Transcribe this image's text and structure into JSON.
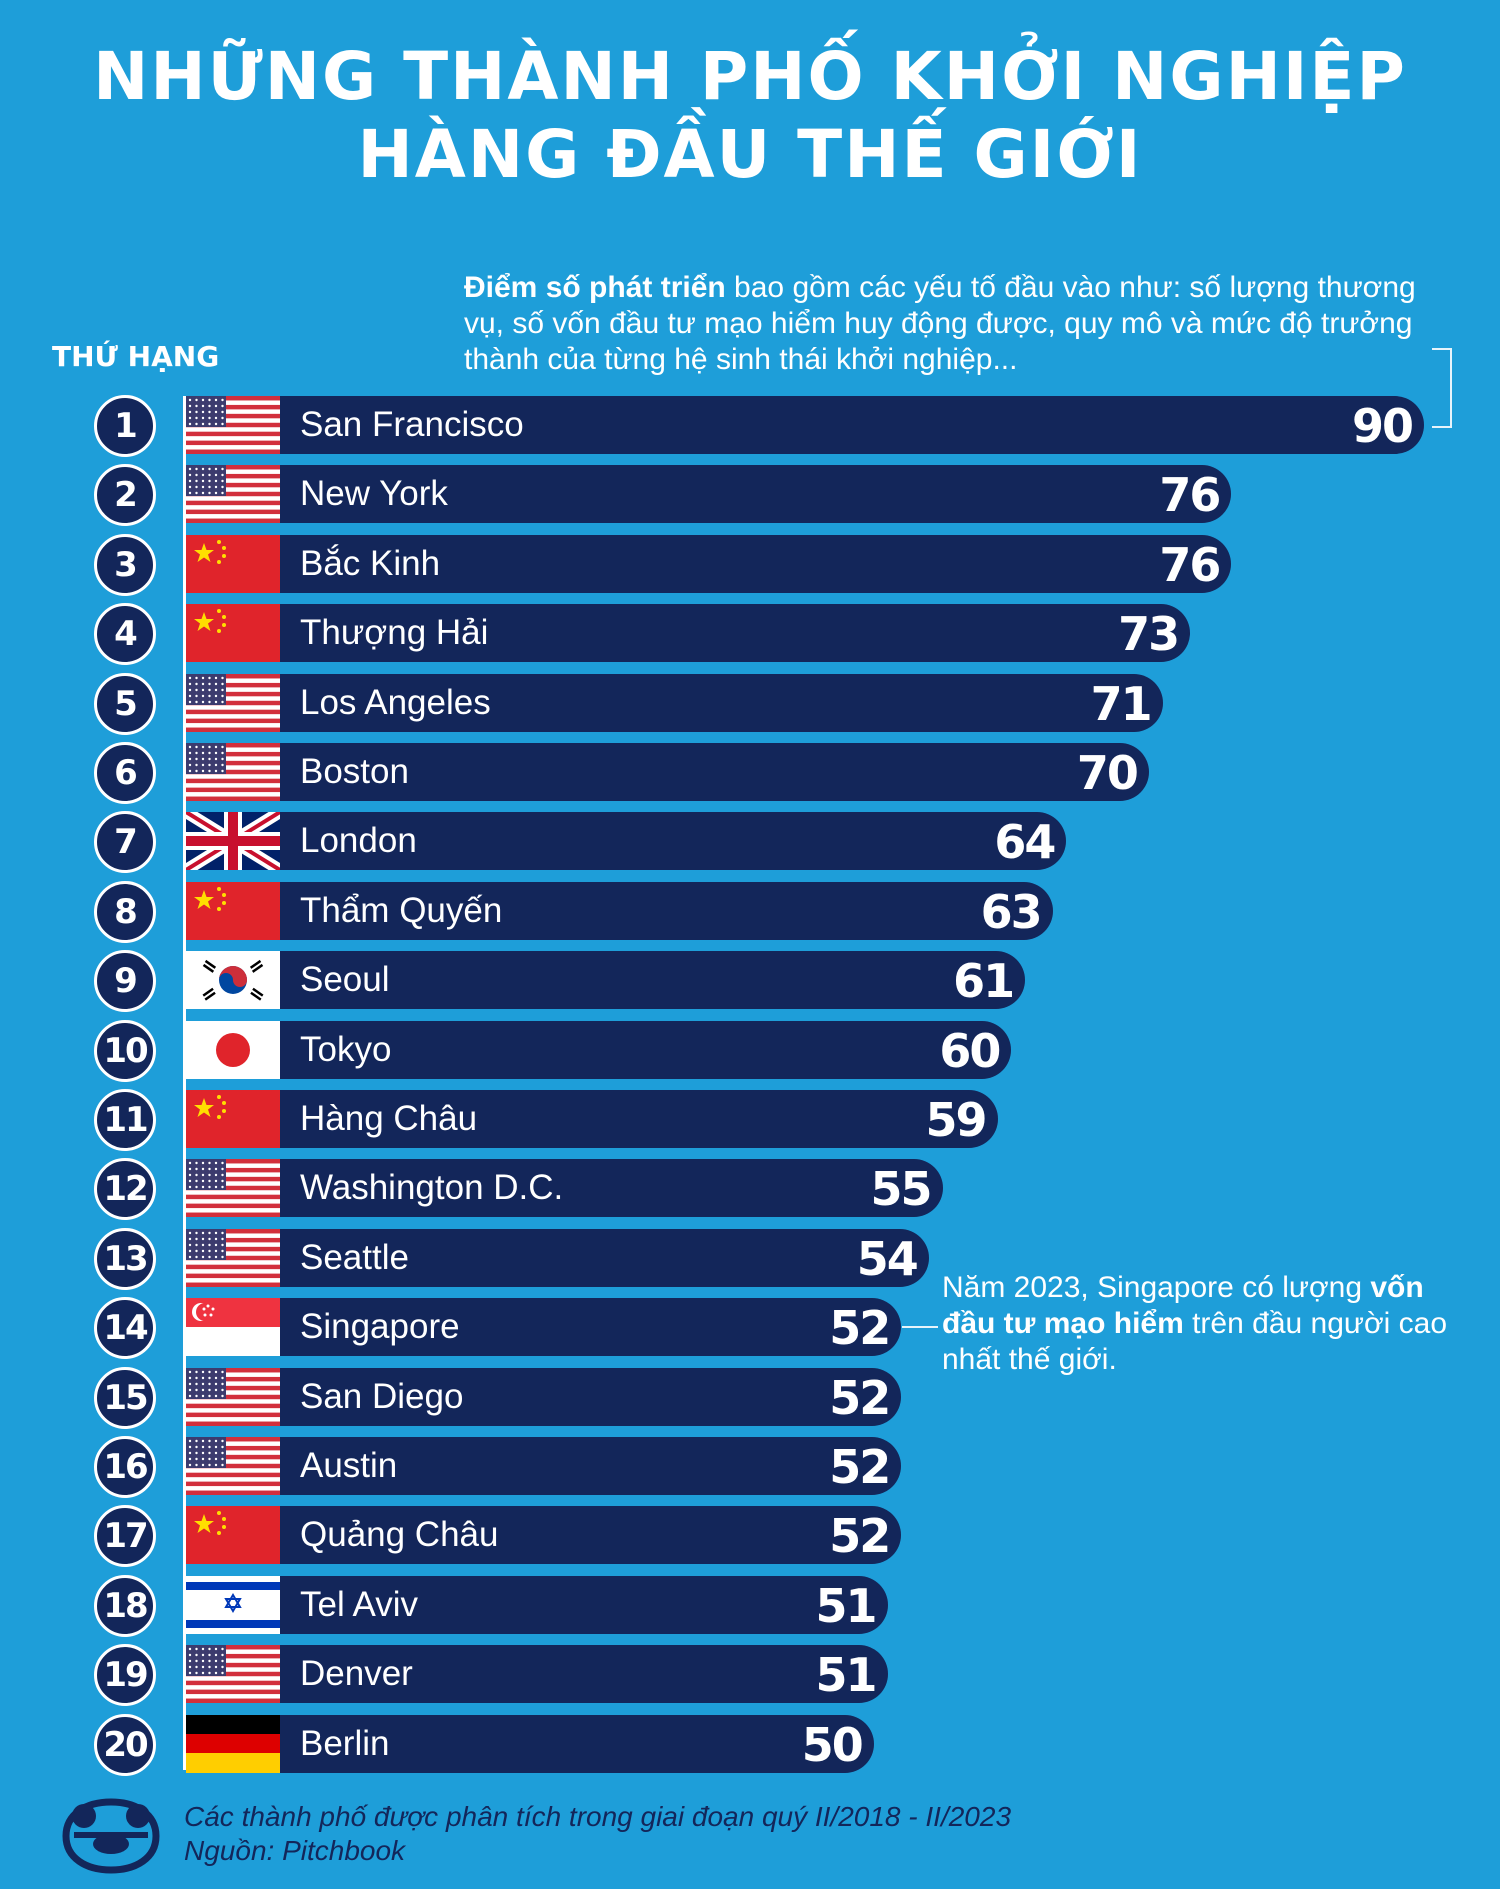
{
  "title": {
    "line1": "NHỮNG THÀNH PHỐ KHỞI NGHIỆP",
    "line2": "HÀNG ĐẦU THẾ GIỚI"
  },
  "rank_header": "THỨ HẠNG",
  "note_top": {
    "bold": "Điểm số phát triển",
    "rest": " bao gồm các yếu tố đầu vào như: số lượng thương vụ, số vốn đầu tư mạo hiểm huy động được, quy mô và mức độ trưởng thành của từng hệ sinh thái khởi nghiệp..."
  },
  "note_mid": {
    "before": "Năm 2023, Singapore có lượng ",
    "bold": "vốn đầu tư mạo hiểm",
    "after": " trên đầu người cao nhất thế giới."
  },
  "footer": {
    "period": "Các thành phố được phân tích trong giai đoạn quý II/2018 - II/2023",
    "source": "Nguồn: Pitchbook"
  },
  "colors": {
    "background": "#1e9ed9",
    "bar": "#13265a",
    "text": "#ffffff"
  },
  "chart_data": {
    "type": "bar",
    "orientation": "horizontal",
    "xlim": [
      0,
      90
    ],
    "categories": [
      "San Francisco",
      "New York",
      "Bắc Kinh",
      "Thượng Hải",
      "Los Angeles",
      "Boston",
      "London",
      "Thẩm Quyến",
      "Seoul",
      "Tokyo",
      "Hàng Châu",
      "Washington D.C.",
      "Seattle",
      "Singapore",
      "San Diego",
      "Austin",
      "Quảng Châu",
      "Tel Aviv",
      "Denver",
      "Berlin"
    ],
    "ranks": [
      "1",
      "2",
      "3",
      "4",
      "5",
      "6",
      "7",
      "8",
      "9",
      "10",
      "11",
      "12",
      "13",
      "14",
      "15",
      "16",
      "17",
      "18",
      "19",
      "20"
    ],
    "values": [
      90,
      76,
      76,
      73,
      71,
      70,
      64,
      63,
      61,
      60,
      59,
      55,
      54,
      52,
      52,
      52,
      52,
      51,
      51,
      50
    ],
    "flags": [
      "us-flag-icon",
      "us-flag-icon",
      "cn-flag-icon",
      "cn-flag-icon",
      "us-flag-icon",
      "us-flag-icon",
      "uk-flag-icon",
      "cn-flag-icon",
      "kr-flag-icon",
      "jp-flag-icon",
      "cn-flag-icon",
      "us-flag-icon",
      "us-flag-icon",
      "sg-flag-icon",
      "us-flag-icon",
      "us-flag-icon",
      "cn-flag-icon",
      "il-flag-icon",
      "us-flag-icon",
      "de-flag-icon"
    ]
  }
}
